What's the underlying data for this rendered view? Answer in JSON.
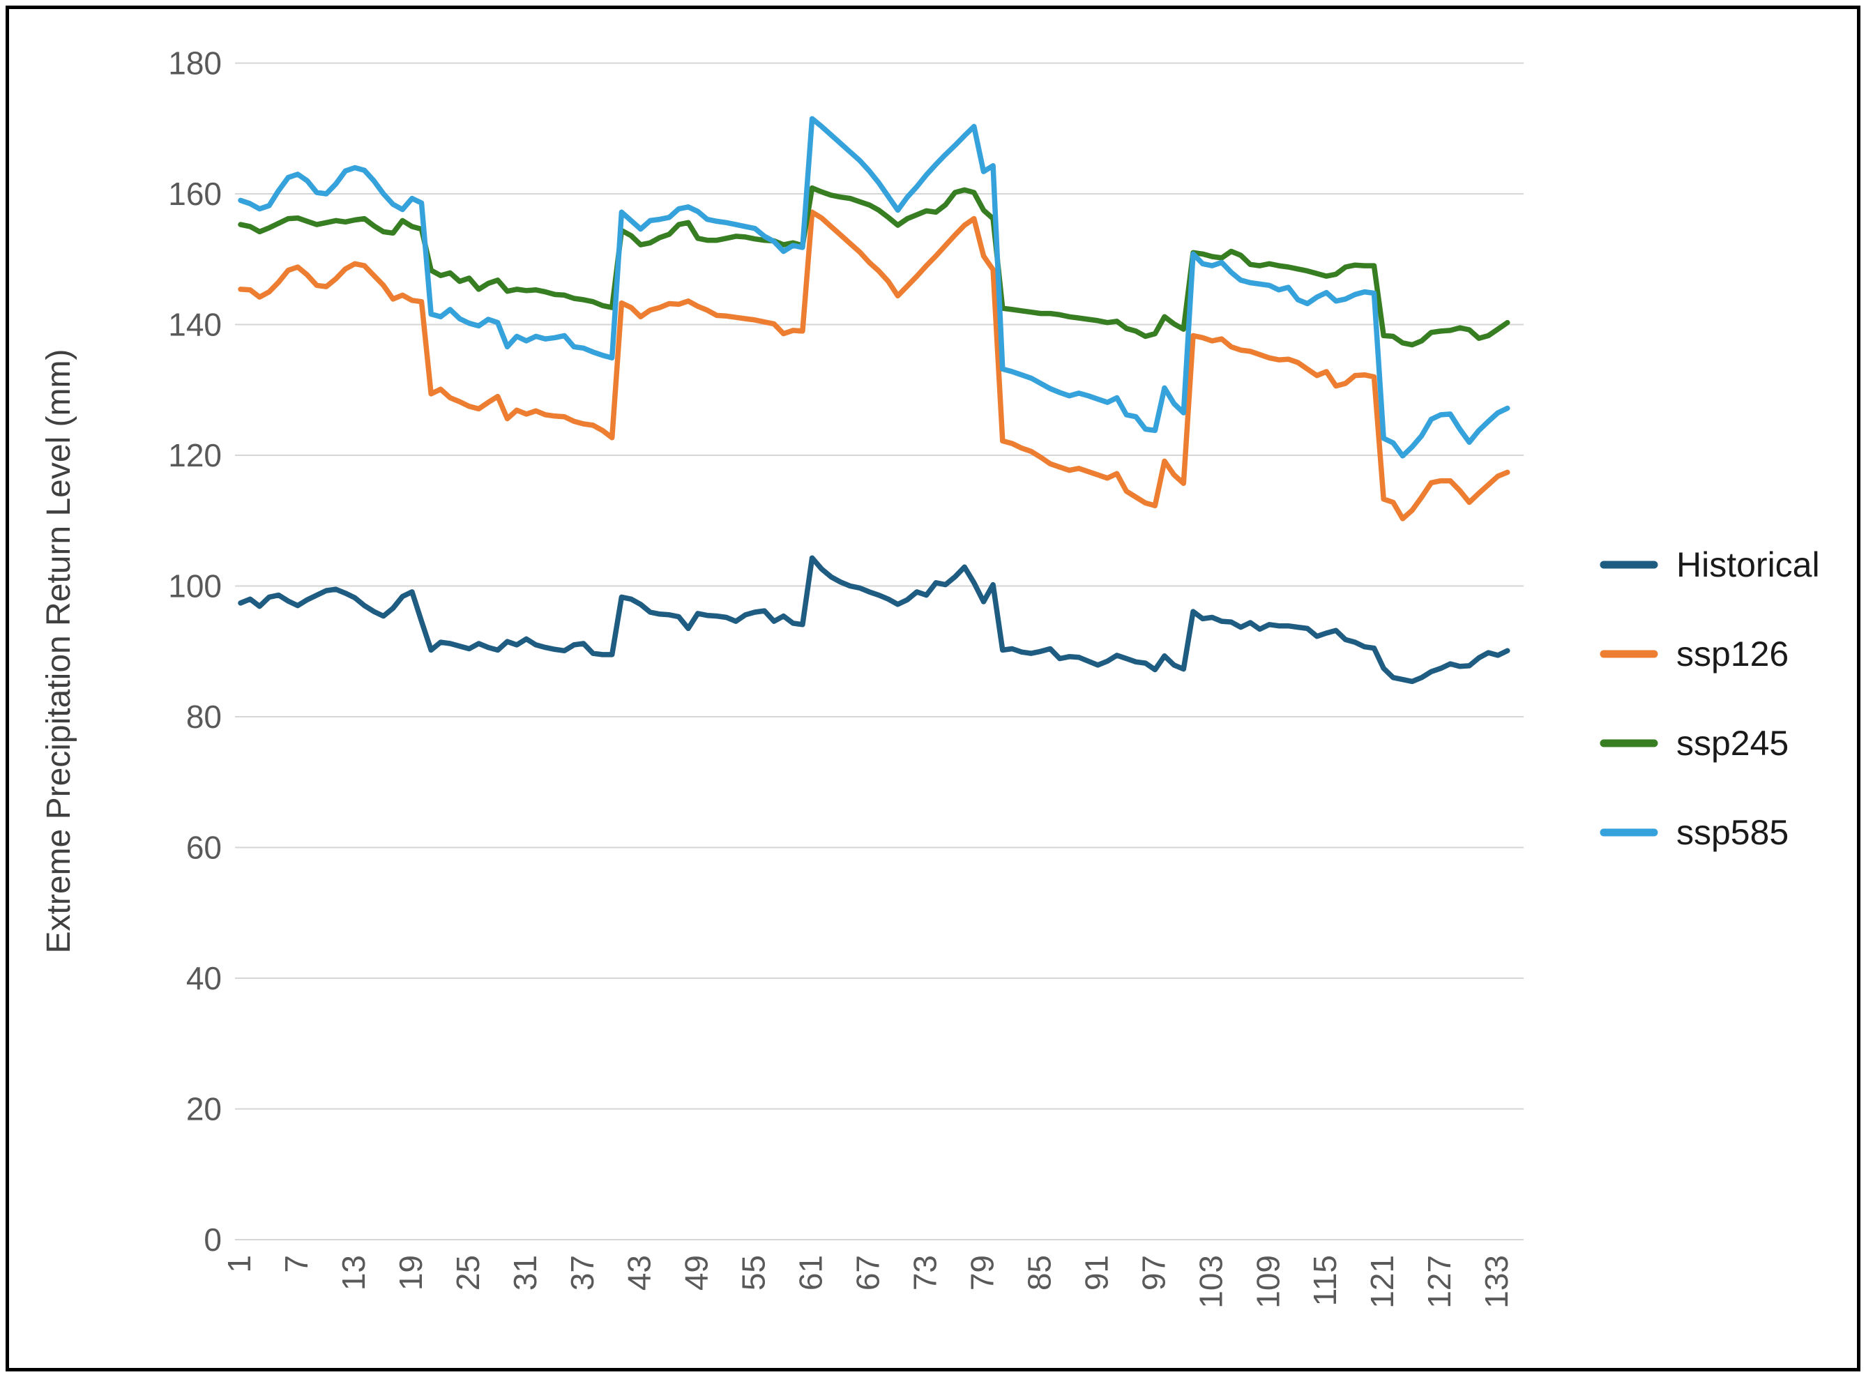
{
  "page": {
    "background": "#ffffff",
    "border_color": "#000000"
  },
  "chart_data": {
    "type": "line",
    "title": "",
    "xlabel": "",
    "ylabel": "Extreme Precipitation Return Level (mm)",
    "ylim": [
      0,
      180
    ],
    "yticks": [
      0,
      20,
      40,
      60,
      80,
      100,
      120,
      140,
      160,
      180
    ],
    "xticks": [
      1,
      7,
      13,
      19,
      25,
      31,
      37,
      43,
      49,
      55,
      61,
      67,
      73,
      79,
      85,
      91,
      97,
      103,
      109,
      115,
      121,
      127,
      133
    ],
    "n_points": 134,
    "grid": "horizontal",
    "gridline_color": "#D6D6D6",
    "axis_text_color": "#595959",
    "legend_position": "right",
    "series": [
      {
        "name": "Historical",
        "color": "#1F5C82",
        "values": [
          97.4,
          98.0,
          96.9,
          98.3,
          98.6,
          97.7,
          97.0,
          97.9,
          98.6,
          99.3,
          99.5,
          98.9,
          98.2,
          97.0,
          96.1,
          95.4,
          96.6,
          98.4,
          99.1,
          94.6,
          90.2,
          91.4,
          91.2,
          90.8,
          90.4,
          91.2,
          90.6,
          90.2,
          91.5,
          91.0,
          91.9,
          91.0,
          90.6,
          90.3,
          90.1,
          91.0,
          91.2,
          89.7,
          89.5,
          89.5,
          98.3,
          98.0,
          97.2,
          96.0,
          95.7,
          95.6,
          95.3,
          93.5,
          95.8,
          95.5,
          95.4,
          95.2,
          94.6,
          95.6,
          96.0,
          96.2,
          94.6,
          95.4,
          94.3,
          94.1,
          104.3,
          102.6,
          101.4,
          100.6,
          100.0,
          99.7,
          99.1,
          98.6,
          98.0,
          97.2,
          97.9,
          99.1,
          98.6,
          100.5,
          100.2,
          101.4,
          102.9,
          100.5,
          97.6,
          100.2,
          90.2,
          90.4,
          89.9,
          89.7,
          90.0,
          90.4,
          88.9,
          89.2,
          89.1,
          88.5,
          87.9,
          88.5,
          89.4,
          88.9,
          88.4,
          88.2,
          87.2,
          89.3,
          87.9,
          87.3,
          96.1,
          95.0,
          95.2,
          94.6,
          94.5,
          93.7,
          94.4,
          93.4,
          94.1,
          93.9,
          93.9,
          93.7,
          93.5,
          92.3,
          92.8,
          93.2,
          91.8,
          91.4,
          90.7,
          90.5,
          87.4,
          86.0,
          85.7,
          85.4,
          86.0,
          86.9,
          87.4,
          88.1,
          87.7,
          87.8,
          89.0,
          89.8,
          89.4,
          90.1
        ]
      },
      {
        "name": "ssp126",
        "color": "#ED7D31",
        "values": [
          145.4,
          145.3,
          144.2,
          145.0,
          146.5,
          148.3,
          148.8,
          147.6,
          146.0,
          145.8,
          147.0,
          148.5,
          149.3,
          149.0,
          147.5,
          146.0,
          143.9,
          144.5,
          143.7,
          143.5,
          129.4,
          130.1,
          128.8,
          128.2,
          127.5,
          127.1,
          128.1,
          129.0,
          125.6,
          126.9,
          126.3,
          126.8,
          126.2,
          126.0,
          125.9,
          125.2,
          124.8,
          124.6,
          123.8,
          122.7,
          143.3,
          142.6,
          141.2,
          142.2,
          142.6,
          143.2,
          143.1,
          143.6,
          142.8,
          142.2,
          141.4,
          141.3,
          141.1,
          140.9,
          140.7,
          140.4,
          140.1,
          138.6,
          139.1,
          139.0,
          157.2,
          156.3,
          155.0,
          153.7,
          152.4,
          151.1,
          149.5,
          148.2,
          146.6,
          144.4,
          145.9,
          147.4,
          149.0,
          150.5,
          152.1,
          153.7,
          155.2,
          156.2,
          150.5,
          148.4,
          122.2,
          121.8,
          121.1,
          120.6,
          119.7,
          118.7,
          118.2,
          117.7,
          118.0,
          117.5,
          117.0,
          116.5,
          117.2,
          114.5,
          113.6,
          112.7,
          112.3,
          119.1,
          117.0,
          115.7,
          138.3,
          138.0,
          137.5,
          137.8,
          136.6,
          136.1,
          135.9,
          135.4,
          134.9,
          134.6,
          134.7,
          134.2,
          133.2,
          132.2,
          132.8,
          130.6,
          131.0,
          132.2,
          132.3,
          132.0,
          113.3,
          112.8,
          110.3,
          111.6,
          113.6,
          115.8,
          116.1,
          116.1,
          114.6,
          112.8,
          114.2,
          115.5,
          116.8,
          117.4
        ]
      },
      {
        "name": "ssp245",
        "color": "#377D22",
        "values": [
          155.3,
          155.0,
          154.2,
          154.8,
          155.5,
          156.2,
          156.3,
          155.8,
          155.3,
          155.6,
          155.9,
          155.7,
          156.0,
          156.2,
          155.1,
          154.2,
          154.0,
          155.9,
          155.0,
          154.6,
          148.3,
          147.5,
          147.9,
          146.6,
          147.1,
          145.4,
          146.3,
          146.8,
          145.1,
          145.4,
          145.2,
          145.3,
          145.0,
          144.6,
          144.5,
          144.0,
          143.8,
          143.5,
          142.9,
          142.6,
          154.4,
          153.6,
          152.2,
          152.5,
          153.3,
          153.8,
          155.3,
          155.6,
          153.2,
          152.9,
          152.9,
          153.2,
          153.5,
          153.4,
          153.1,
          152.9,
          152.8,
          152.2,
          152.5,
          152.1,
          160.9,
          160.3,
          159.8,
          159.5,
          159.3,
          158.8,
          158.3,
          157.5,
          156.4,
          155.2,
          156.2,
          156.8,
          157.4,
          157.2,
          158.3,
          160.2,
          160.6,
          160.2,
          157.5,
          156.2,
          142.5,
          142.3,
          142.1,
          141.9,
          141.7,
          141.7,
          141.5,
          141.2,
          141.0,
          140.8,
          140.6,
          140.3,
          140.5,
          139.4,
          139.0,
          138.2,
          138.6,
          141.2,
          140.1,
          139.3,
          151.0,
          150.8,
          150.4,
          150.2,
          151.2,
          150.6,
          149.2,
          149.0,
          149.3,
          149.0,
          148.8,
          148.5,
          148.2,
          147.8,
          147.4,
          147.7,
          148.8,
          149.1,
          149.0,
          149.0,
          138.3,
          138.2,
          137.2,
          136.9,
          137.5,
          138.8,
          139.0,
          139.1,
          139.5,
          139.2,
          137.9,
          138.3,
          139.3,
          140.3
        ]
      },
      {
        "name": "ssp585",
        "color": "#36A2DB",
        "values": [
          159.0,
          158.5,
          157.7,
          158.2,
          160.5,
          162.5,
          163.0,
          162.0,
          160.2,
          160.0,
          161.5,
          163.5,
          164.0,
          163.6,
          162.0,
          160.0,
          158.4,
          157.6,
          159.3,
          158.6,
          141.6,
          141.2,
          142.3,
          140.9,
          140.2,
          139.8,
          140.8,
          140.3,
          136.6,
          138.2,
          137.5,
          138.2,
          137.8,
          138.0,
          138.3,
          136.6,
          136.4,
          135.8,
          135.3,
          134.9,
          157.2,
          155.9,
          154.6,
          155.9,
          156.1,
          156.4,
          157.7,
          158.0,
          157.3,
          156.1,
          155.8,
          155.6,
          155.3,
          155.0,
          154.7,
          153.5,
          152.7,
          151.2,
          152.1,
          151.8,
          171.5,
          170.3,
          169.0,
          167.7,
          166.4,
          165.1,
          163.5,
          161.7,
          159.6,
          157.5,
          159.5,
          161.1,
          162.9,
          164.5,
          166.0,
          167.4,
          168.9,
          170.3,
          163.4,
          164.3,
          133.2,
          132.8,
          132.3,
          131.8,
          131.0,
          130.2,
          129.6,
          129.1,
          129.5,
          129.1,
          128.6,
          128.1,
          128.8,
          126.2,
          125.9,
          124.0,
          123.8,
          130.3,
          127.9,
          126.5,
          150.8,
          149.3,
          149.0,
          149.5,
          148.0,
          146.8,
          146.4,
          146.2,
          146.0,
          145.3,
          145.7,
          143.8,
          143.2,
          144.2,
          144.9,
          143.6,
          143.9,
          144.6,
          145.0,
          144.8,
          122.6,
          121.9,
          119.9,
          121.3,
          123.0,
          125.5,
          126.2,
          126.3,
          124.0,
          122.0,
          123.8,
          125.2,
          126.5,
          127.2
        ]
      }
    ]
  }
}
